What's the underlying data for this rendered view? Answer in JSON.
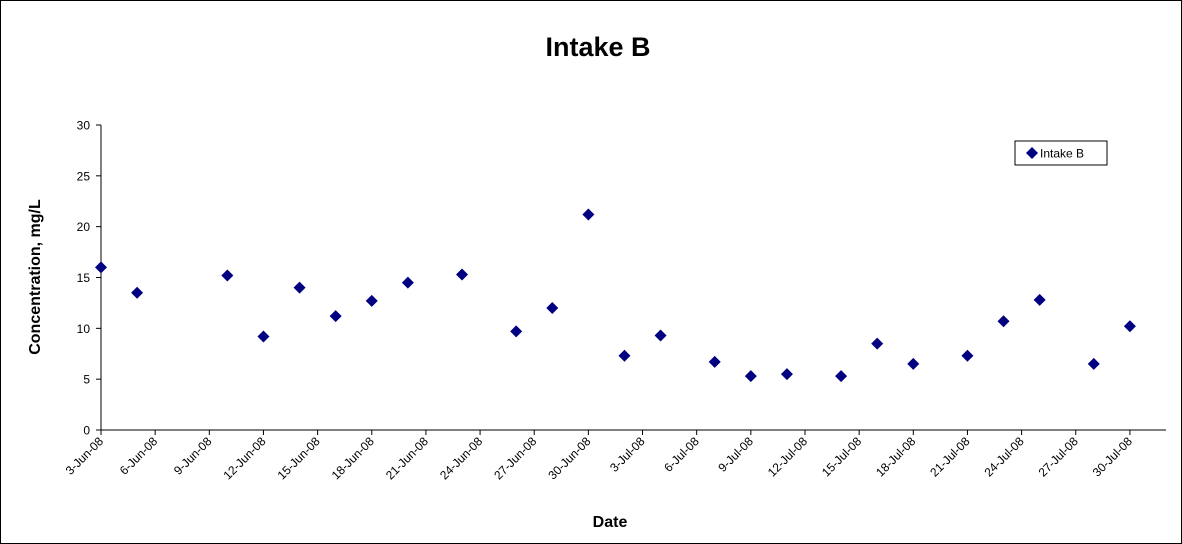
{
  "chart_data": {
    "type": "scatter",
    "title": "Intake B",
    "xlabel": "Date",
    "ylabel": "Concentration, mg/L",
    "ylim": [
      0,
      30
    ],
    "yticks": [
      "0",
      "5",
      "10",
      "15",
      "20",
      "25",
      "30"
    ],
    "xlim": [
      "2008-06-03",
      "2008-08-01"
    ],
    "xticks": [
      {
        "date": "2008-06-03",
        "label": "3-Jun-08"
      },
      {
        "date": "2008-06-06",
        "label": "6-Jun-08"
      },
      {
        "date": "2008-06-09",
        "label": "9-Jun-08"
      },
      {
        "date": "2008-06-12",
        "label": "12-Jun-08"
      },
      {
        "date": "2008-06-15",
        "label": "15-Jun-08"
      },
      {
        "date": "2008-06-18",
        "label": "18-Jun-08"
      },
      {
        "date": "2008-06-21",
        "label": "21-Jun-08"
      },
      {
        "date": "2008-06-24",
        "label": "24-Jun-08"
      },
      {
        "date": "2008-06-27",
        "label": "27-Jun-08"
      },
      {
        "date": "2008-06-30",
        "label": "30-Jun-08"
      },
      {
        "date": "2008-07-03",
        "label": "3-Jul-08"
      },
      {
        "date": "2008-07-06",
        "label": "6-Jul-08"
      },
      {
        "date": "2008-07-09",
        "label": "9-Jul-08"
      },
      {
        "date": "2008-07-12",
        "label": "12-Jul-08"
      },
      {
        "date": "2008-07-15",
        "label": "15-Jul-08"
      },
      {
        "date": "2008-07-18",
        "label": "18-Jul-08"
      },
      {
        "date": "2008-07-21",
        "label": "21-Jul-08"
      },
      {
        "date": "2008-07-24",
        "label": "24-Jul-08"
      },
      {
        "date": "2008-07-27",
        "label": "27-Jul-08"
      },
      {
        "date": "2008-07-30",
        "label": "30-Jul-08"
      }
    ],
    "grid": false,
    "legend_position": "top-right",
    "series": [
      {
        "name": "Intake B",
        "color": "#000080",
        "marker": "diamond",
        "points": [
          {
            "x": "2008-06-03",
            "y": 16.0
          },
          {
            "x": "2008-06-05",
            "y": 13.5
          },
          {
            "x": "2008-06-10",
            "y": 15.2
          },
          {
            "x": "2008-06-12",
            "y": 9.2
          },
          {
            "x": "2008-06-14",
            "y": 14.0
          },
          {
            "x": "2008-06-16",
            "y": 11.2
          },
          {
            "x": "2008-06-18",
            "y": 12.7
          },
          {
            "x": "2008-06-20",
            "y": 14.5
          },
          {
            "x": "2008-06-23",
            "y": 15.3
          },
          {
            "x": "2008-06-26",
            "y": 9.7
          },
          {
            "x": "2008-06-28",
            "y": 12.0
          },
          {
            "x": "2008-06-30",
            "y": 21.2
          },
          {
            "x": "2008-07-02",
            "y": 7.3
          },
          {
            "x": "2008-07-04",
            "y": 9.3
          },
          {
            "x": "2008-07-07",
            "y": 6.7
          },
          {
            "x": "2008-07-09",
            "y": 5.3
          },
          {
            "x": "2008-07-11",
            "y": 5.5
          },
          {
            "x": "2008-07-14",
            "y": 5.3
          },
          {
            "x": "2008-07-16",
            "y": 8.5
          },
          {
            "x": "2008-07-18",
            "y": 6.5
          },
          {
            "x": "2008-07-21",
            "y": 7.3
          },
          {
            "x": "2008-07-23",
            "y": 10.7
          },
          {
            "x": "2008-07-25",
            "y": 12.8
          },
          {
            "x": "2008-07-28",
            "y": 6.5
          },
          {
            "x": "2008-07-30",
            "y": 10.2
          }
        ]
      }
    ]
  }
}
